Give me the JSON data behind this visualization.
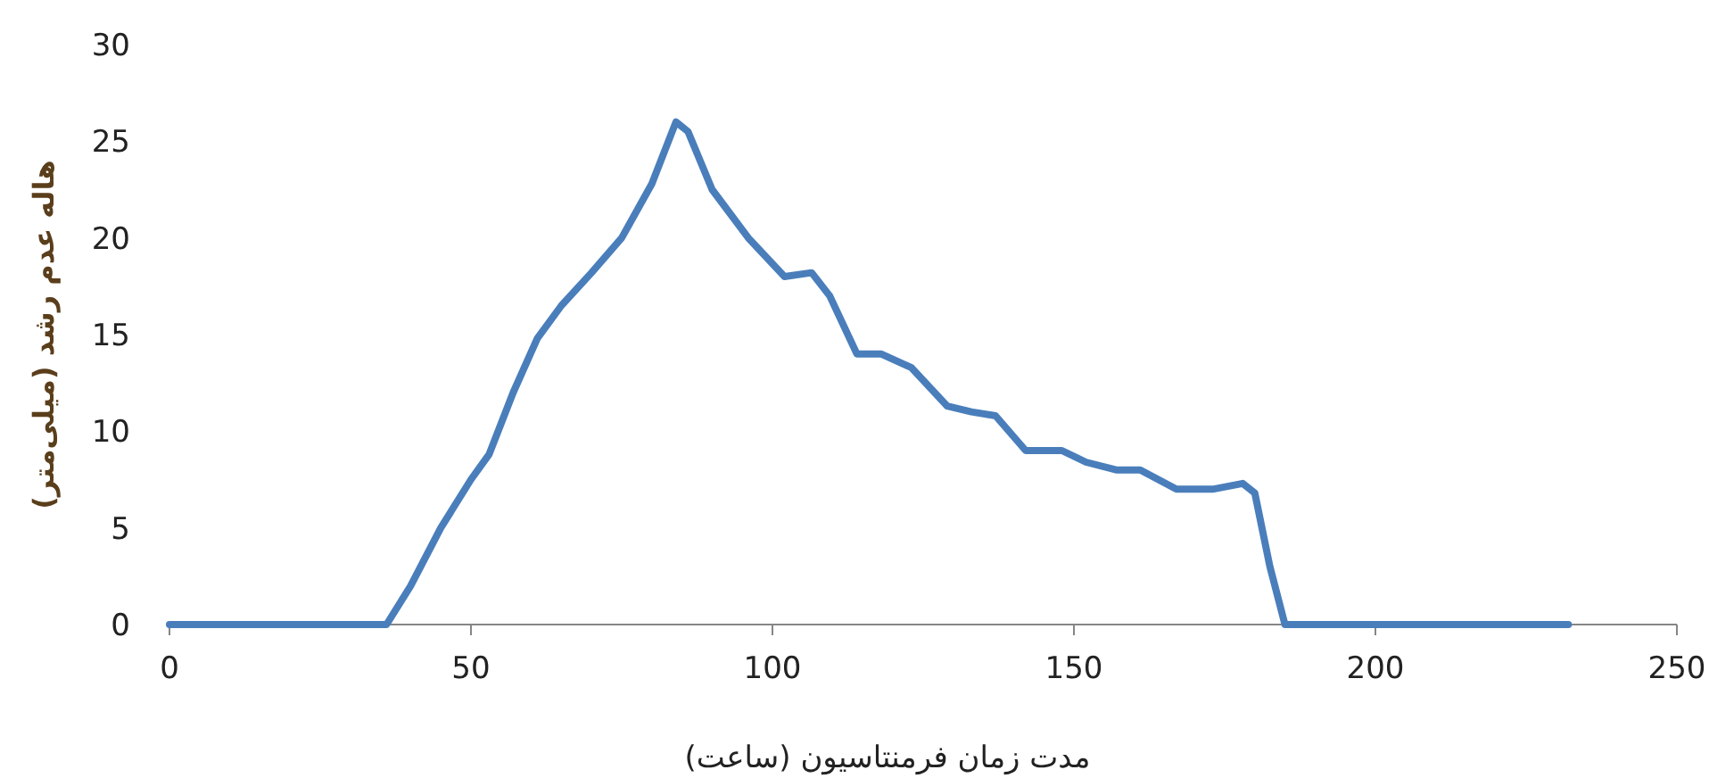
{
  "chart_data": {
    "type": "line",
    "xlabel": "مدت زمان فرمنتاسیون (ساعت)",
    "ylabel": "هاله عدم رشد (میلی‌متر)",
    "x": [
      0,
      20,
      34,
      36,
      40,
      45,
      50,
      53,
      57,
      61,
      65,
      70,
      75,
      80,
      84,
      86,
      90,
      96,
      102,
      106.5,
      109.5,
      114,
      118,
      123,
      129,
      133,
      137,
      142,
      148,
      152,
      157,
      161,
      167,
      173,
      178,
      180,
      182.5,
      185,
      190,
      210,
      232
    ],
    "series": [
      {
        "color": "#4a7ebb",
        "values": [
          0,
          0,
          0,
          0,
          2,
          5,
          7.5,
          8.8,
          12,
          14.8,
          16.5,
          18.2,
          20,
          22.8,
          26,
          25.5,
          22.5,
          20,
          18,
          18.2,
          17,
          14,
          14,
          13.3,
          11.3,
          11,
          10.8,
          9,
          9,
          8.4,
          8,
          8,
          7,
          7,
          7.3,
          6.8,
          3,
          0,
          0,
          0,
          0
        ]
      }
    ],
    "xlim": [
      0,
      250
    ],
    "ylim": [
      0,
      30
    ],
    "xticks": [
      0,
      50,
      100,
      150,
      200,
      250
    ],
    "yticks": [
      0,
      5,
      10,
      15,
      20,
      25,
      30
    ],
    "line_style": "solid"
  }
}
